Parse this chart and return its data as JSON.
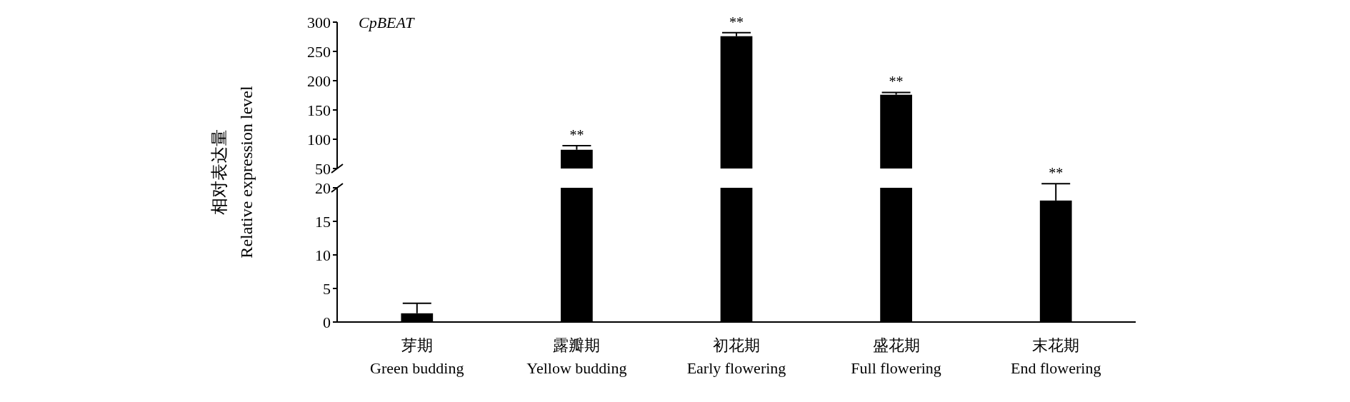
{
  "chart_data": [
    {
      "type": "bar",
      "title": "CpBEAT",
      "categories": [
        "芽期\nGreen budding",
        "露瓣期\nYellow budding",
        "初花期\nEarly flowering",
        "盛花期\nFull flowering",
        "末花期\nEnd flowering"
      ],
      "values": [
        null,
        82,
        276,
        176,
        null
      ],
      "errors": [
        null,
        7,
        6,
        4,
        null
      ],
      "color": "#000000",
      "ylim": [
        50,
        300
      ],
      "yticks": [
        50,
        100,
        150,
        200,
        250,
        300
      ],
      "tick_labels": "y",
      "grid": false,
      "annotations": [
        {
          "text": "**",
          "x": "露瓣期\nYellow budding",
          "y": 89
        },
        {
          "text": "**",
          "x": "初花期\nEarly flowering",
          "y": 282
        },
        {
          "text": "**",
          "x": "盛花期\nFull flowering",
          "y": 180
        }
      ]
    },
    {
      "type": "bar",
      "ylabel": "相对表达量\nRelative expression level",
      "categories": [
        "芽期\nGreen budding",
        "露瓣期\nYellow budding",
        "初花期\nEarly flowering",
        "盛花期\nFull flowering",
        "末花期\nEnd flowering"
      ],
      "values": [
        1.3,
        20,
        20,
        20,
        18.1
      ],
      "errors": [
        1.5,
        null,
        null,
        null,
        2.5
      ],
      "color": "#000000",
      "ylim": [
        0,
        20
      ],
      "yticks": [
        0,
        5,
        10,
        15,
        20
      ],
      "grid": false,
      "annotations": [
        {
          "text": "**",
          "x": "末花期\nEnd flowering",
          "y": 20.6
        }
      ]
    }
  ]
}
